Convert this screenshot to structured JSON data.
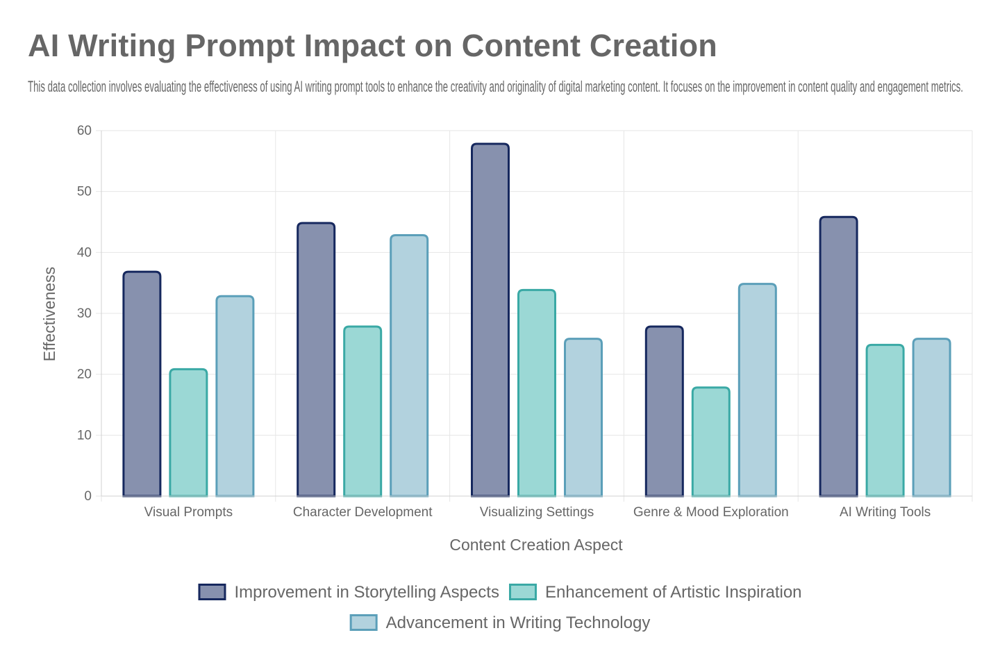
{
  "chart_data": {
    "type": "bar",
    "title": "AI Writing Prompt Impact on Content Creation",
    "subtitle": "This data collection involves evaluating the effectiveness of using AI writing prompt tools to enhance the creativity and originality of digital marketing content. It focuses on the improvement in content quality and engagement metrics.",
    "xlabel": "Content Creation Aspect",
    "ylabel": "Effectiveness",
    "ylim": [
      0,
      60
    ],
    "yticks": [
      "0",
      "10",
      "20",
      "30",
      "40",
      "50",
      "60"
    ],
    "grid": true,
    "legend_position": "bottom",
    "categories": [
      "Visual Prompts",
      "Character Development",
      "Visualizing Settings",
      "Genre & Mood Exploration",
      "AI Writing Tools"
    ],
    "series": [
      {
        "name": "Improvement in Storytelling Aspects",
        "values": [
          37,
          45,
          58,
          28,
          46
        ],
        "fill": "#8791ae",
        "border": "#16285e"
      },
      {
        "name": "Enhancement of Artistic Inspiration",
        "values": [
          21,
          28,
          34,
          18,
          25
        ],
        "fill": "#9bd8d5",
        "border": "#3aa9a5"
      },
      {
        "name": "Advancement in Writing Technology",
        "values": [
          33,
          43,
          26,
          35,
          26
        ],
        "fill": "#b2d2de",
        "border": "#5b9fb9"
      }
    ]
  }
}
